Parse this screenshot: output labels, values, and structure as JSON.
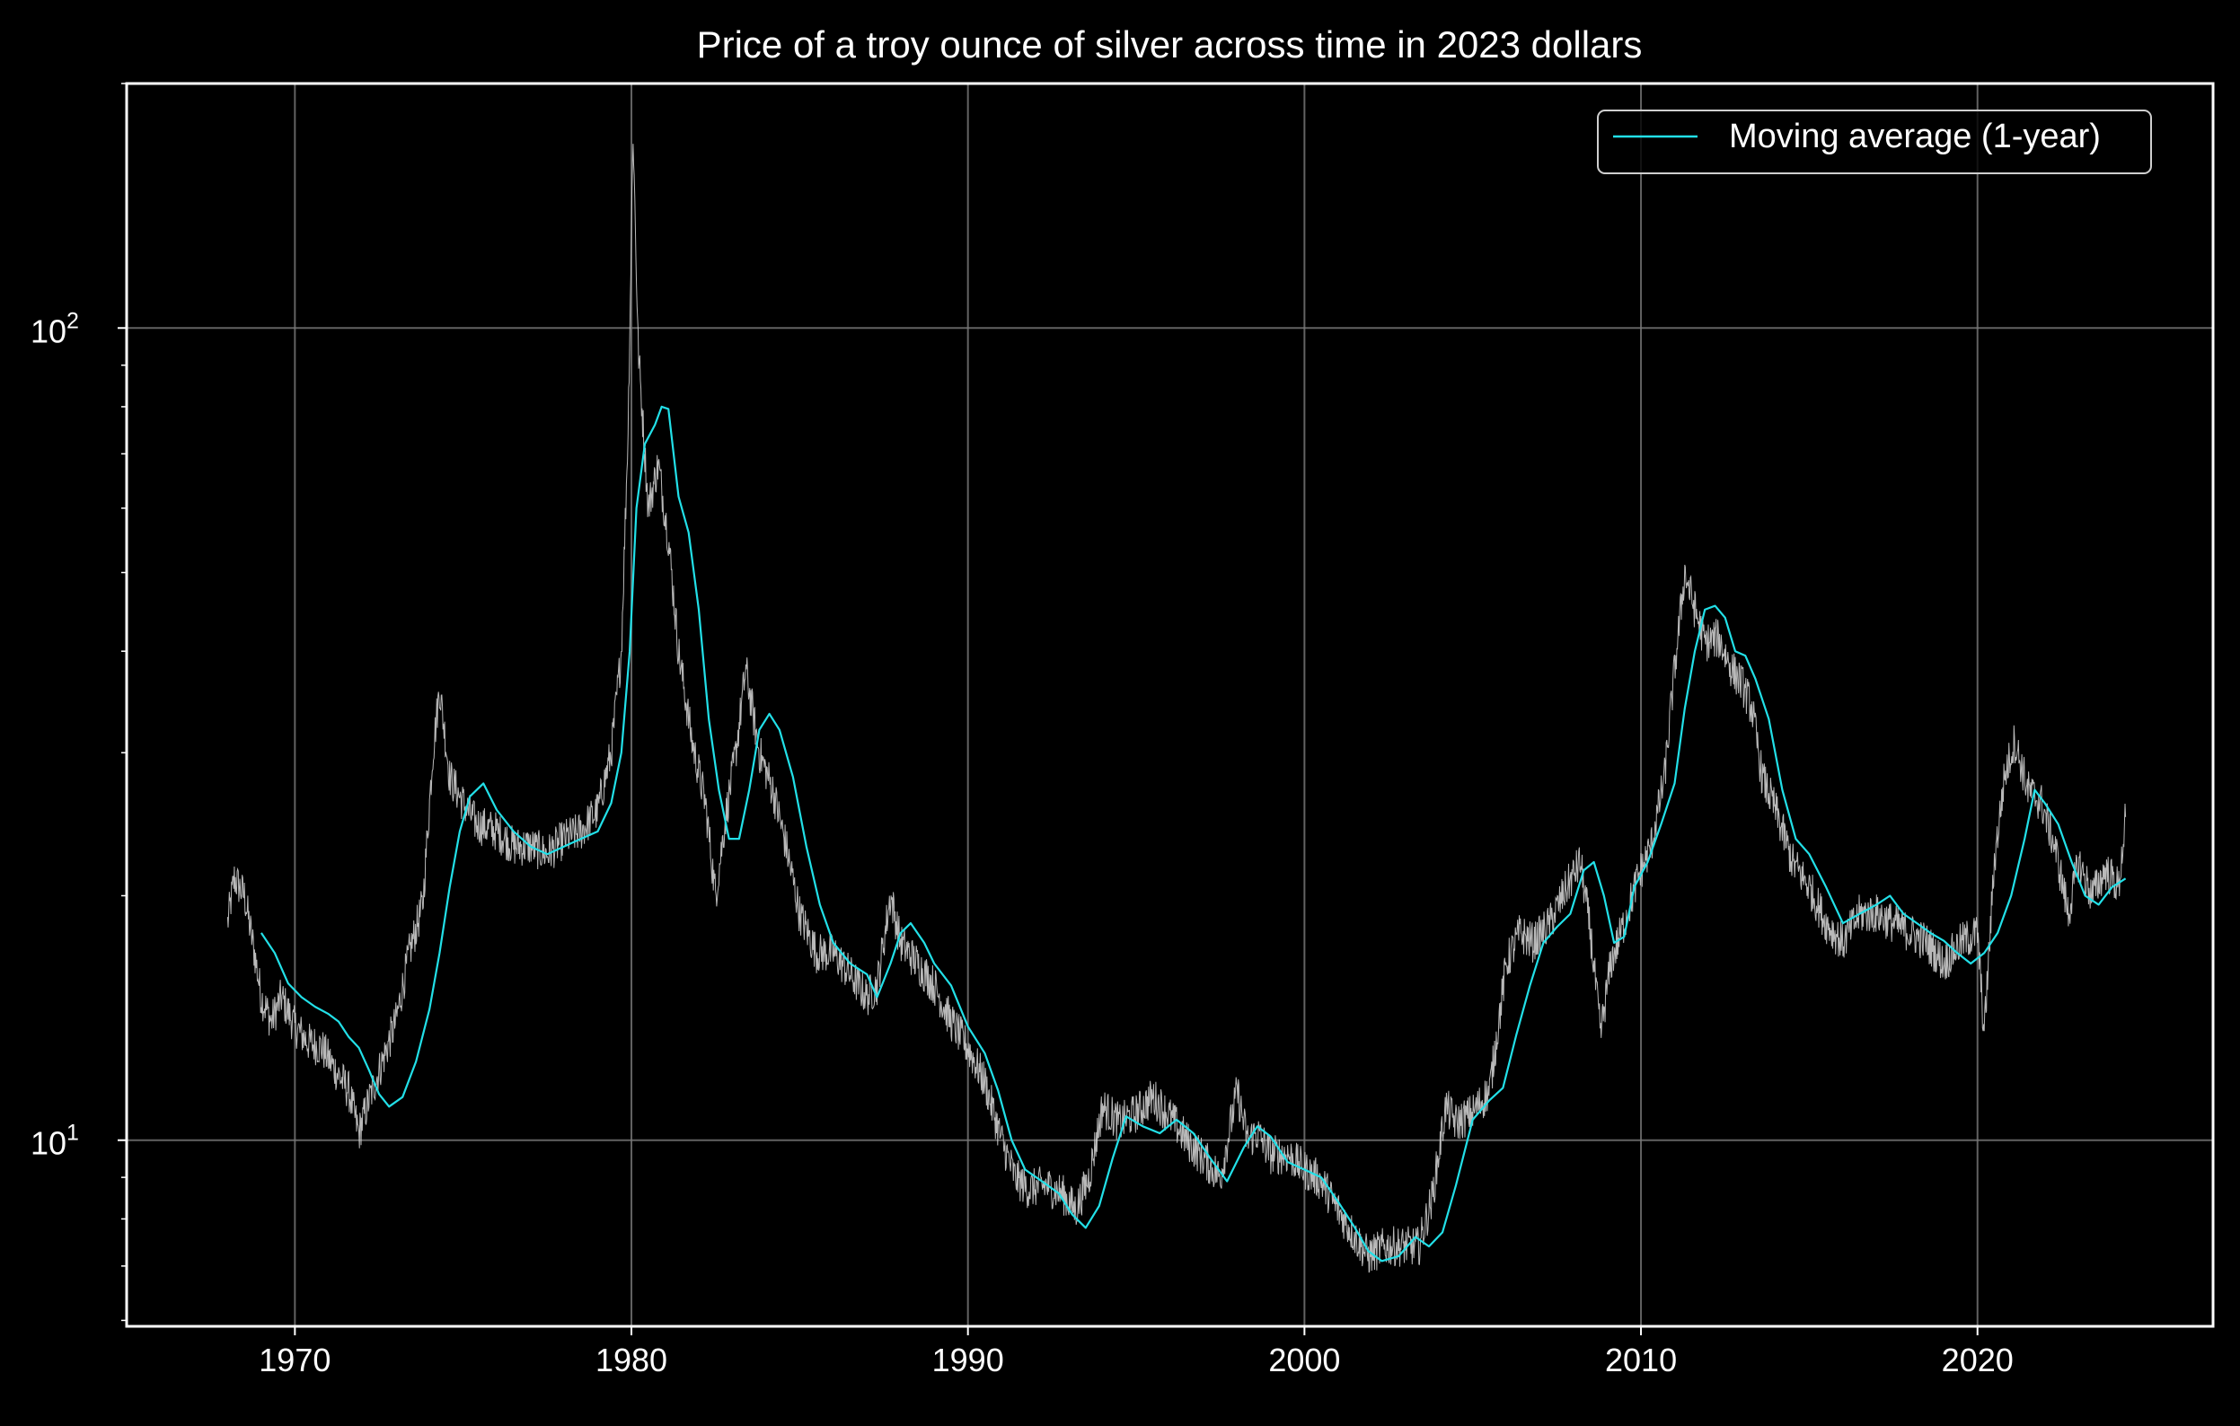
{
  "chart_data": {
    "type": "line",
    "title": "Price of a troy ounce of silver across time in 2023 dollars",
    "xlabel": "",
    "ylabel": "",
    "yscale": "log",
    "xlim": [
      1965.0,
      2027.0
    ],
    "ylim": [
      5.9,
      200.0
    ],
    "grid": true,
    "legend": {
      "position": "top-right",
      "entries": [
        "Moving average (1-year)"
      ]
    },
    "x_ticks": [
      1970,
      1980,
      1990,
      2000,
      2010,
      2020
    ],
    "x_tick_labels": [
      "1970",
      "1980",
      "1990",
      "2000",
      "2010",
      "2020"
    ],
    "y_ticks": [
      10,
      100
    ],
    "y_tick_labels": [
      {
        "base": "10",
        "exp": "1"
      },
      {
        "base": "10",
        "exp": "2"
      }
    ],
    "colors": {
      "background": "#000000",
      "price": "#d9d9d9",
      "moving_average": "#22e0e8",
      "grid": "#7a7a7a",
      "axes": "#ffffff"
    },
    "series": [
      {
        "style": "thin-noisy",
        "x": [
          1968.0,
          1968.2,
          1968.5,
          1968.8,
          1969.0,
          1969.3,
          1969.6,
          1970.0,
          1970.4,
          1970.8,
          1971.2,
          1971.6,
          1971.9,
          1972.2,
          1972.6,
          1973.0,
          1973.4,
          1973.8,
          1974.1,
          1974.3,
          1974.6,
          1975.0,
          1975.4,
          1976.0,
          1976.5,
          1977.0,
          1977.5,
          1978.0,
          1978.5,
          1979.0,
          1979.4,
          1979.7,
          1979.9,
          1980.05,
          1980.2,
          1980.5,
          1980.8,
          1981.1,
          1981.4,
          1981.8,
          1982.2,
          1982.5,
          1982.8,
          1983.1,
          1983.4,
          1983.8,
          1984.2,
          1984.6,
          1985.0,
          1985.5,
          1986.0,
          1986.5,
          1987.0,
          1987.3,
          1987.7,
          1988.0,
          1988.5,
          1989.0,
          1989.5,
          1990.0,
          1990.5,
          1991.0,
          1991.4,
          1991.8,
          1992.3,
          1992.8,
          1993.2,
          1993.6,
          1994.0,
          1994.5,
          1995.0,
          1995.5,
          1996.0,
          1996.5,
          1997.0,
          1997.5,
          1998.0,
          1998.3,
          1998.6,
          1999.0,
          1999.5,
          2000.0,
          2000.5,
          2001.0,
          2001.5,
          2001.9,
          2002.4,
          2002.9,
          2003.4,
          2003.8,
          2004.2,
          2004.5,
          2005.0,
          2005.5,
          2006.0,
          2006.4,
          2006.8,
          2007.3,
          2007.8,
          2008.2,
          2008.5,
          2008.8,
          2009.1,
          2009.5,
          2009.9,
          2010.3,
          2010.7,
          2011.0,
          2011.3,
          2011.6,
          2011.9,
          2012.3,
          2012.7,
          2013.0,
          2013.3,
          2013.6,
          2014.0,
          2014.5,
          2015.0,
          2015.5,
          2016.0,
          2016.5,
          2017.0,
          2017.5,
          2018.0,
          2018.5,
          2019.0,
          2019.5,
          2020.0,
          2020.2,
          2020.5,
          2020.8,
          2021.1,
          2021.5,
          2021.9,
          2022.3,
          2022.7,
          2023.0,
          2023.4,
          2023.8,
          2024.2,
          2024.4
        ],
        "values": [
          18.5,
          21.0,
          20.0,
          17.0,
          15.0,
          14.0,
          15.0,
          13.8,
          13.2,
          13.0,
          12.2,
          11.5,
          10.2,
          11.2,
          12.5,
          14.0,
          17.0,
          19.5,
          30.0,
          36.0,
          28.0,
          26.0,
          24.5,
          24.0,
          23.0,
          23.0,
          22.5,
          23.5,
          24.0,
          25.5,
          30.0,
          40.0,
          75.0,
          175.0,
          95.0,
          60.0,
          68.0,
          55.0,
          40.0,
          31.0,
          26.0,
          20.0,
          25.0,
          30.0,
          38.0,
          30.0,
          27.0,
          23.0,
          19.0,
          17.0,
          17.0,
          16.0,
          15.0,
          15.5,
          20.0,
          17.5,
          16.5,
          15.5,
          14.0,
          13.0,
          11.8,
          10.0,
          9.0,
          8.7,
          8.8,
          8.6,
          8.2,
          9.0,
          11.0,
          10.5,
          10.8,
          11.3,
          10.7,
          10.0,
          9.5,
          9.0,
          11.5,
          10.0,
          10.2,
          9.6,
          9.6,
          9.2,
          8.9,
          8.2,
          7.6,
          7.2,
          7.4,
          7.4,
          7.4,
          8.5,
          11.0,
          10.5,
          10.8,
          11.5,
          16.5,
          18.0,
          17.5,
          18.5,
          20.5,
          22.0,
          18.0,
          13.5,
          16.5,
          18.5,
          21.0,
          23.0,
          28.0,
          38.0,
          50.0,
          45.0,
          41.0,
          41.5,
          38.0,
          36.5,
          34.0,
          28.0,
          25.5,
          22.0,
          20.5,
          18.5,
          17.5,
          19.0,
          19.0,
          18.5,
          18.0,
          17.5,
          16.5,
          17.5,
          18.0,
          13.5,
          22.0,
          28.0,
          31.0,
          27.0,
          26.0,
          23.0,
          19.0,
          22.0,
          20.0,
          21.5,
          20.5,
          25.0
        ]
      },
      {
        "name": "Moving average (1-year)",
        "x": [
          1969.0,
          1969.4,
          1969.8,
          1970.2,
          1970.6,
          1971.0,
          1971.3,
          1971.6,
          1971.9,
          1972.2,
          1972.5,
          1972.8,
          1973.2,
          1973.6,
          1974.0,
          1974.3,
          1974.6,
          1974.9,
          1975.2,
          1975.6,
          1976.0,
          1976.5,
          1977.0,
          1977.5,
          1978.0,
          1978.5,
          1979.0,
          1979.4,
          1979.7,
          1979.95,
          1980.15,
          1980.4,
          1980.7,
          1980.9,
          1981.1,
          1981.4,
          1981.7,
          1982.0,
          1982.3,
          1982.6,
          1982.9,
          1983.2,
          1983.5,
          1983.8,
          1984.1,
          1984.4,
          1984.8,
          1985.2,
          1985.6,
          1986.0,
          1986.5,
          1987.0,
          1987.3,
          1987.7,
          1988.0,
          1988.3,
          1988.7,
          1989.0,
          1989.5,
          1990.0,
          1990.5,
          1990.9,
          1991.3,
          1991.7,
          1992.2,
          1992.7,
          1993.1,
          1993.5,
          1993.9,
          1994.3,
          1994.7,
          1995.2,
          1995.7,
          1996.2,
          1996.7,
          1997.2,
          1997.7,
          1998.2,
          1998.6,
          1999.0,
          1999.5,
          2000.0,
          2000.5,
          2001.0,
          2001.5,
          2001.9,
          2002.3,
          2002.8,
          2003.3,
          2003.7,
          2004.1,
          2004.5,
          2005.0,
          2005.5,
          2005.9,
          2006.3,
          2006.7,
          2007.1,
          2007.5,
          2007.9,
          2008.3,
          2008.6,
          2008.9,
          2009.2,
          2009.5,
          2009.8,
          2010.2,
          2010.6,
          2011.0,
          2011.3,
          2011.6,
          2011.9,
          2012.2,
          2012.5,
          2012.8,
          2013.1,
          2013.4,
          2013.8,
          2014.2,
          2014.6,
          2015.0,
          2015.5,
          2016.0,
          2016.5,
          2017.0,
          2017.4,
          2017.8,
          2018.2,
          2018.6,
          2019.0,
          2019.4,
          2019.8,
          2020.2,
          2020.6,
          2021.0,
          2021.4,
          2021.7,
          2022.0,
          2022.4,
          2022.8,
          2023.2,
          2023.6,
          2024.0,
          2024.4
        ],
        "values": [
          18.0,
          17.0,
          15.6,
          15.0,
          14.6,
          14.3,
          14.0,
          13.4,
          13.0,
          12.2,
          11.4,
          11.0,
          11.3,
          12.5,
          14.5,
          17.0,
          20.5,
          24.0,
          26.5,
          27.5,
          25.5,
          24.0,
          23.0,
          22.5,
          23.0,
          23.5,
          24.0,
          26.0,
          30.0,
          40.0,
          60.0,
          72.0,
          76.0,
          80.0,
          79.5,
          62.0,
          56.0,
          45.0,
          33.0,
          27.0,
          23.5,
          23.5,
          27.0,
          32.0,
          33.5,
          32.0,
          28.0,
          23.0,
          19.5,
          17.5,
          16.5,
          16.0,
          15.0,
          16.5,
          18.0,
          18.5,
          17.5,
          16.5,
          15.5,
          13.8,
          12.8,
          11.5,
          10.0,
          9.2,
          8.9,
          8.6,
          8.1,
          7.8,
          8.3,
          9.5,
          10.7,
          10.4,
          10.2,
          10.6,
          10.2,
          9.5,
          8.9,
          9.8,
          10.4,
          10.1,
          9.4,
          9.2,
          9.0,
          8.4,
          7.8,
          7.3,
          7.1,
          7.2,
          7.6,
          7.4,
          7.7,
          8.8,
          10.6,
          11.2,
          11.6,
          13.5,
          15.5,
          17.5,
          18.3,
          19.0,
          21.5,
          22.0,
          20.0,
          17.5,
          17.8,
          20.5,
          22.0,
          24.5,
          27.5,
          34.0,
          40.0,
          45.0,
          45.5,
          44.0,
          40.0,
          39.5,
          37.0,
          33.0,
          27.0,
          23.5,
          22.5,
          20.5,
          18.5,
          19.0,
          19.5,
          20.0,
          19.0,
          18.5,
          18.0,
          17.6,
          17.0,
          16.5,
          17.0,
          18.0,
          20.0,
          23.5,
          27.0,
          26.0,
          24.5,
          22.0,
          20.0,
          19.5,
          20.5,
          21.0
        ]
      }
    ]
  }
}
